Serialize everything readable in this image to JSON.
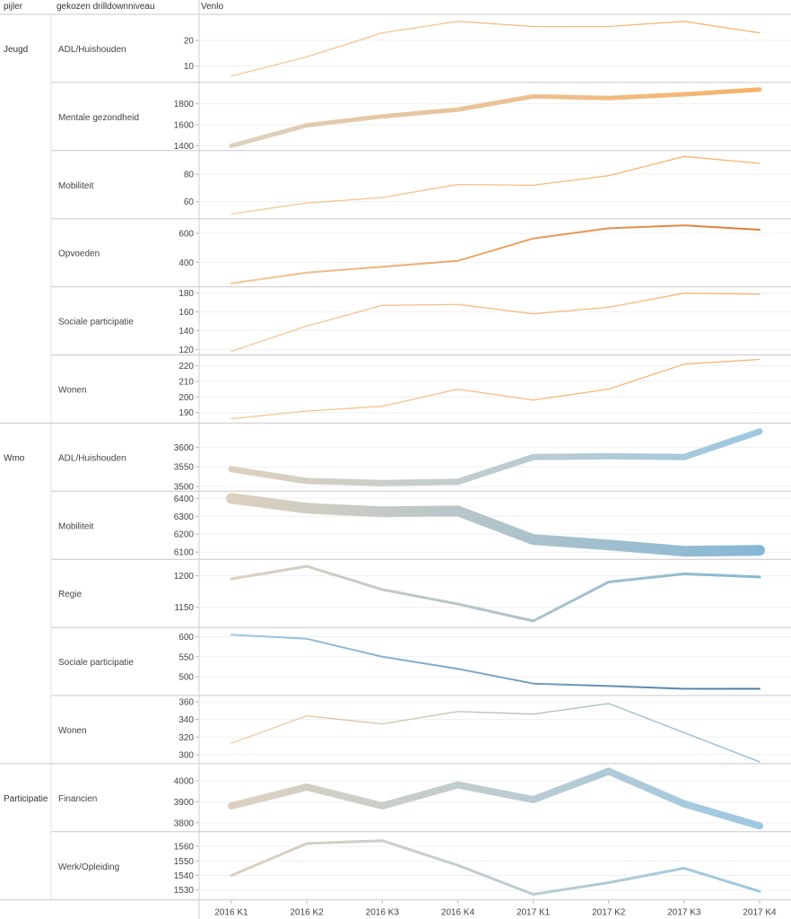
{
  "header": {
    "col_pijler": "pijler",
    "col_niveau": "gekozen drilldownniveau",
    "col_venlo": "Venlo"
  },
  "chart_data": {
    "type": "line",
    "categories": [
      "2016 K1",
      "2016 K2",
      "2016 K3",
      "2016 K4",
      "2017 K1",
      "2017 K2",
      "2017 K3",
      "2017 K4"
    ],
    "grid": true,
    "panels": [
      {
        "pijler": "Jeugd",
        "label": "ADL/Huishouden",
        "ticks": [
          10,
          20
        ],
        "ylim": [
          4.5,
          28.5
        ],
        "values": [
          6,
          13.5,
          23,
          27.5,
          25.5,
          25.5,
          27.5,
          23
        ],
        "style": "orange-thin"
      },
      {
        "pijler": "Jeugd",
        "label": "Mentale gezondheid",
        "ticks": [
          1400,
          1600,
          1800
        ],
        "ylim": [
          1380,
          1960
        ],
        "values": [
          1400,
          1595,
          1680,
          1745,
          1870,
          1855,
          1890,
          1935
        ],
        "style": "orange-thick"
      },
      {
        "pijler": "Jeugd",
        "label": "Mobiliteit",
        "ticks": [
          60,
          80
        ],
        "ylim": [
          49.5,
          94
        ],
        "values": [
          51,
          59,
          63,
          72.5,
          72,
          79,
          93,
          88
        ],
        "style": "orange-thin"
      },
      {
        "pijler": "Jeugd",
        "label": "Opvoeden",
        "ticks": [
          400,
          600
        ],
        "ylim": [
          250,
          670
        ],
        "values": [
          255,
          330,
          370,
          410,
          565,
          635,
          655,
          625
        ],
        "style": "orange-dark"
      },
      {
        "pijler": "Jeugd",
        "label": "Sociale participatie",
        "ticks": [
          120,
          140,
          160,
          180
        ],
        "ylim": [
          117,
          182
        ],
        "values": [
          118,
          145,
          167,
          168,
          158,
          165,
          180,
          179
        ],
        "style": "orange-thin"
      },
      {
        "pijler": "Jeugd",
        "label": "Wonen",
        "ticks": [
          190,
          200,
          210,
          220
        ],
        "ylim": [
          185,
          224
        ],
        "values": [
          186,
          191,
          194,
          205,
          198,
          205,
          221,
          224
        ],
        "style": "orange-thin"
      },
      {
        "pijler": "Wmo",
        "label": "ADL/Huishouden",
        "ticks": [
          3500,
          3550,
          3600
        ],
        "ylim": [
          3495,
          3650
        ],
        "values": [
          3544,
          3514,
          3509,
          3512,
          3575,
          3577,
          3575,
          3640
        ],
        "style": "blue-thick"
      },
      {
        "pijler": "Wmo",
        "label": "Mobiliteit",
        "ticks": [
          6100,
          6200,
          6300,
          6400
        ],
        "ylim": [
          6075,
          6415
        ],
        "values": [
          6400,
          6345,
          6325,
          6330,
          6170,
          6140,
          6105,
          6110
        ],
        "style": "blue-vthick"
      },
      {
        "pijler": "Wmo",
        "label": "Regie",
        "ticks": [
          1150,
          1200
        ],
        "ylim": [
          1122,
          1219
        ],
        "values": [
          1195,
          1215,
          1178,
          1155,
          1128,
          1190,
          1203,
          1198
        ],
        "style": "blue-mid"
      },
      {
        "pijler": "Wmo",
        "label": "Sociale participatie",
        "ticks": [
          500,
          550,
          600
        ],
        "ylim": [
          460,
          612
        ],
        "values": [
          605,
          595,
          550,
          520,
          483,
          477,
          470,
          470
        ],
        "style": "blue-dark"
      },
      {
        "pijler": "Wmo",
        "label": "Wonen",
        "ticks": [
          300,
          320,
          340,
          360
        ],
        "ylim": [
          293,
          362
        ],
        "values": [
          313,
          344,
          335,
          349,
          346,
          358,
          325,
          292
        ],
        "style": "orange-thin-blue"
      },
      {
        "pijler": "Participatie",
        "label": "Financien",
        "ticks": [
          3800,
          3900,
          4000
        ],
        "ylim": [
          3770,
          4060
        ],
        "values": [
          3880,
          3970,
          3880,
          3980,
          3910,
          4045,
          3890,
          3785
        ],
        "style": "beige-thick"
      },
      {
        "pijler": "Participatie",
        "label": "Werk/Opleiding",
        "ticks": [
          1530,
          1540,
          1550,
          1560
        ],
        "ylim": [
          1525,
          1567
        ],
        "values": [
          1540,
          1562,
          1564,
          1547,
          1527,
          1535,
          1545,
          1529
        ],
        "style": "beige-mid"
      }
    ],
    "colors": {
      "orange_light": "#f5c89a",
      "orange_mid": "#f7b36a",
      "orange_dark": "#e07a2f",
      "beige": "#ddd0bf",
      "blue_light": "#9ec8e2",
      "blue_mid": "#86b8d6",
      "blue_dark": "#4a7aa6",
      "rust": "#c97c5a"
    }
  }
}
